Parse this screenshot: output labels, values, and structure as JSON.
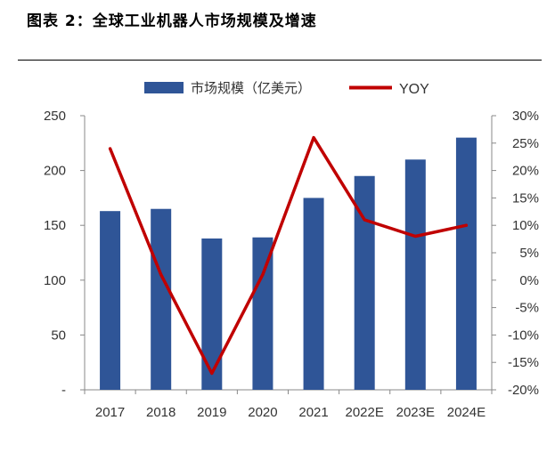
{
  "figure": {
    "title": "图表 2：全球工业机器人市场规模及增速"
  },
  "chart_data": {
    "type": "bar",
    "categories": [
      "2017",
      "2018",
      "2019",
      "2020",
      "2021",
      "2022E",
      "2023E",
      "2024E"
    ],
    "series": [
      {
        "name": "市场规模（亿美元）",
        "type": "bar",
        "axis": "left",
        "color": "#2F5597",
        "values": [
          163,
          165,
          138,
          139,
          175,
          195,
          210,
          230
        ]
      },
      {
        "name": "YOY",
        "type": "line",
        "axis": "right",
        "color": "#C00000",
        "values": [
          24,
          1,
          -17,
          1,
          26,
          11,
          8,
          10
        ]
      }
    ],
    "y_left": {
      "ylim": [
        0,
        250
      ],
      "tick_values": [
        0,
        50,
        100,
        150,
        200,
        250
      ],
      "tick_labels": [
        "-",
        "50",
        "100",
        "150",
        "200",
        "250"
      ]
    },
    "y_right": {
      "ylim": [
        -20,
        30
      ],
      "unit": "%",
      "tick_values": [
        -20,
        -15,
        -10,
        -5,
        0,
        5,
        10,
        15,
        20,
        25,
        30
      ],
      "tick_labels": [
        "-20%",
        "-15%",
        "-10%",
        "-5%",
        "0%",
        "5%",
        "10%",
        "15%",
        "20%",
        "25%",
        "30%"
      ]
    },
    "legend_position": "top",
    "grid": false
  }
}
